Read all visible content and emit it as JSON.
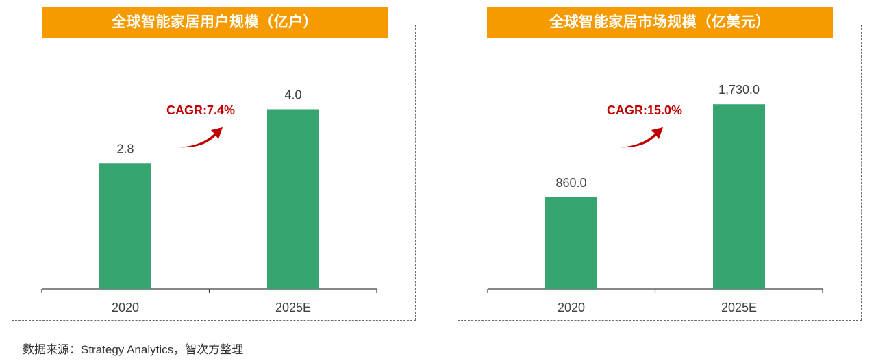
{
  "chart_data": [
    {
      "type": "bar",
      "title": "全球智能家居用户规模（亿户）",
      "categories": [
        "2020",
        "2025E"
      ],
      "values": [
        2.8,
        4.0
      ],
      "value_labels": [
        "2.8",
        "4.0"
      ],
      "ylim": [
        0,
        4.8
      ],
      "annotation": "CAGR:7.4%",
      "bar_color": "#35a46f",
      "annotation_color": "#c00000",
      "grid": false,
      "legend": "none"
    },
    {
      "type": "bar",
      "title": "全球智能家居市场规模（亿美元）",
      "categories": [
        "2020",
        "2025E"
      ],
      "values": [
        860.0,
        1730.0
      ],
      "value_labels": [
        "860.0",
        "1,730.0"
      ],
      "ylim": [
        0,
        2020
      ],
      "annotation": "CAGR:15.0%",
      "bar_color": "#35a46f",
      "annotation_color": "#c00000",
      "grid": false,
      "legend": "none"
    }
  ],
  "source_note": "数据来源：Strategy Analytics，智次方整理"
}
